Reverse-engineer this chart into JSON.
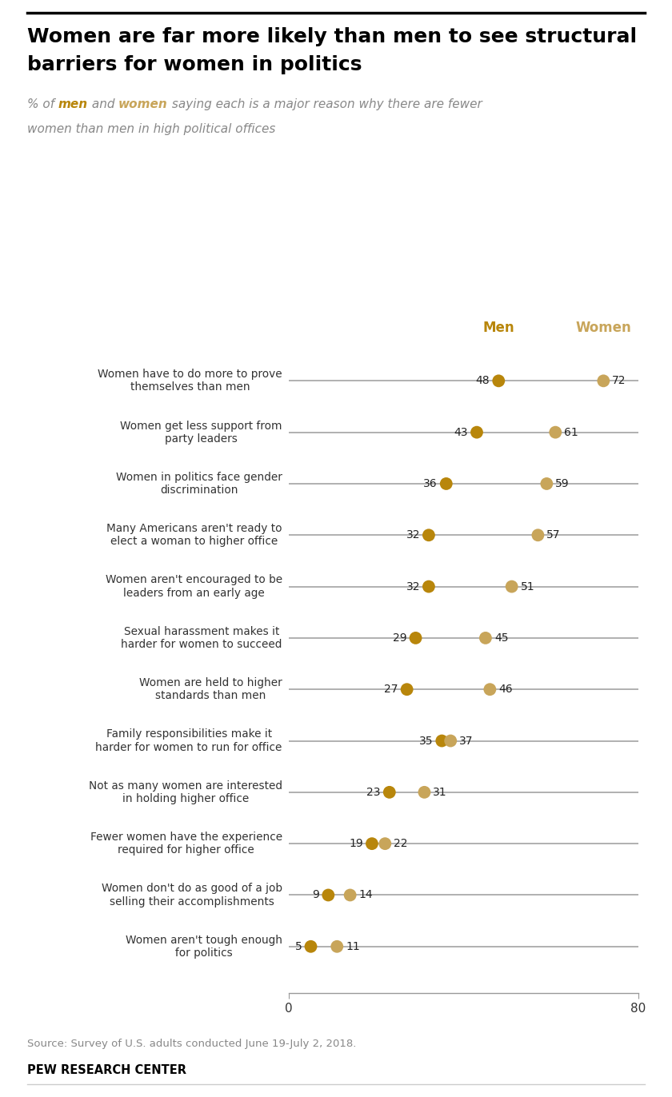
{
  "title_line1": "Women are far more likely than men to see structural",
  "title_line2": "barriers for women in politics",
  "categories": [
    "Women have to do more to prove\nthemselves than men",
    "Women get less support from\nparty leaders",
    "Women in politics face gender\ndiscrimination",
    "Many Americans aren't ready to\nelect a woman to higher office",
    "Women aren't encouraged to be\nleaders from an early age",
    "Sexual harassment makes it\nharder for women to succeed",
    "Women are held to higher\nstandards than men",
    "Family responsibilities make it\nharder for women to run for office",
    "Not as many women are interested\nin holding higher office",
    "Fewer women have the experience\nrequired for higher office",
    "Women don't do as good of a job\nselling their accomplishments",
    "Women aren't tough enough\nfor politics"
  ],
  "men_values": [
    48,
    43,
    36,
    32,
    32,
    29,
    27,
    35,
    23,
    19,
    9,
    5
  ],
  "women_values": [
    72,
    61,
    59,
    57,
    51,
    45,
    46,
    37,
    31,
    22,
    14,
    11
  ],
  "men_color": "#B8860B",
  "women_color": "#C8A55A",
  "line_color": "#aaaaaa",
  "xlim": [
    0,
    80
  ],
  "legend_men": "Men",
  "legend_women": "Women",
  "source_text": "Source: Survey of U.S. adults conducted June 19-July 2, 2018.",
  "footer_text": "PEW RESEARCH CENTER",
  "background_color": "#ffffff"
}
